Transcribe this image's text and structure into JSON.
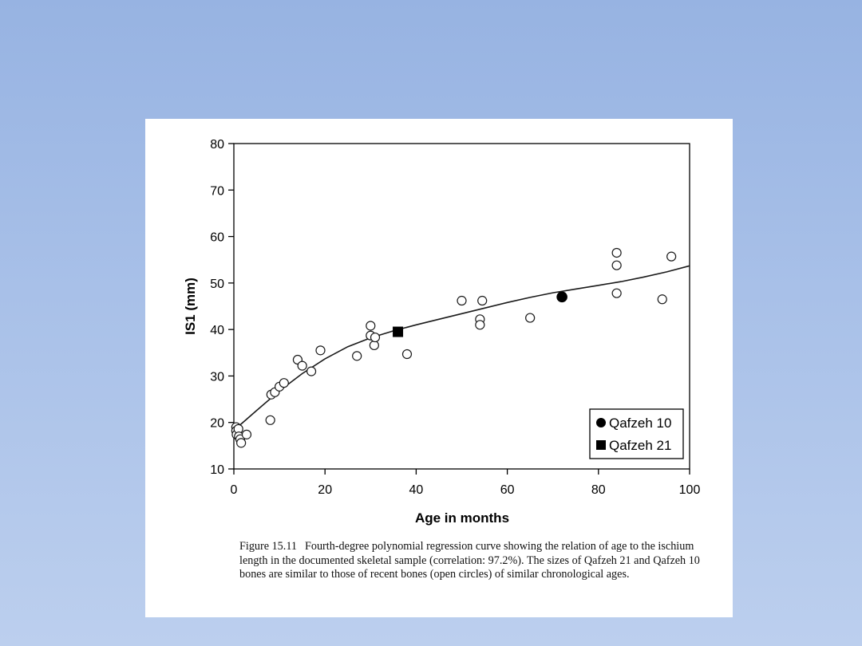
{
  "chart_data": {
    "type": "scatter",
    "xlabel": "Age in months",
    "ylabel": "IS1 (mm)",
    "xlim": [
      0,
      100
    ],
    "ylim": [
      10,
      80
    ],
    "xticks": [
      0,
      20,
      40,
      60,
      80,
      100
    ],
    "yticks": [
      10,
      20,
      30,
      40,
      50,
      60,
      70,
      80
    ],
    "grid": false,
    "legend_position": "bottom-right",
    "legend": [
      {
        "label": "Qafzeh 10",
        "marker": "filled-circle"
      },
      {
        "label": "Qafzeh 21",
        "marker": "filled-square"
      }
    ],
    "series": [
      {
        "marker": "open-circle",
        "points": [
          [
            0.5,
            19.0
          ],
          [
            0.5,
            18.2
          ],
          [
            0.6,
            17.4
          ],
          [
            1.0,
            18.6
          ],
          [
            1.1,
            17.0
          ],
          [
            1.4,
            16.4
          ],
          [
            1.6,
            15.6
          ],
          [
            2.8,
            17.4
          ],
          [
            8.0,
            20.5
          ],
          [
            8.2,
            26.0
          ],
          [
            9.0,
            26.5
          ],
          [
            10.0,
            27.7
          ],
          [
            11.0,
            28.5
          ],
          [
            14.0,
            33.5
          ],
          [
            15.0,
            32.2
          ],
          [
            17.0,
            31.0
          ],
          [
            19.0,
            35.5
          ],
          [
            27.0,
            34.3
          ],
          [
            30.0,
            40.8
          ],
          [
            30.0,
            38.7
          ],
          [
            30.8,
            36.6
          ],
          [
            31.0,
            38.3
          ],
          [
            38.0,
            34.7
          ],
          [
            50.0,
            46.2
          ],
          [
            54.0,
            42.2
          ],
          [
            54.0,
            41.0
          ],
          [
            54.5,
            46.2
          ],
          [
            65.0,
            42.5
          ],
          [
            84.0,
            56.5
          ],
          [
            84.0,
            53.8
          ],
          [
            84.0,
            47.8
          ],
          [
            94.0,
            46.5
          ],
          [
            96.0,
            55.7
          ]
        ]
      },
      {
        "name": "Qafzeh 10",
        "marker": "filled-circle",
        "points": [
          [
            72.0,
            47.0
          ]
        ]
      },
      {
        "name": "Qafzeh 21",
        "marker": "filled-square",
        "points": [
          [
            36.0,
            39.5
          ]
        ]
      }
    ],
    "regression_curve": {
      "type": "fourth-degree polynomial",
      "points": [
        [
          0,
          18.3
        ],
        [
          5,
          22.6
        ],
        [
          10,
          26.8
        ],
        [
          15,
          30.5
        ],
        [
          20,
          33.7
        ],
        [
          25,
          36.3
        ],
        [
          30,
          38.2
        ],
        [
          35,
          39.7
        ],
        [
          40,
          41.0
        ],
        [
          45,
          42.2
        ],
        [
          50,
          43.4
        ],
        [
          55,
          44.6
        ],
        [
          60,
          45.8
        ],
        [
          65,
          46.9
        ],
        [
          70,
          47.9
        ],
        [
          75,
          48.7
        ],
        [
          80,
          49.5
        ],
        [
          85,
          50.3
        ],
        [
          90,
          51.3
        ],
        [
          95,
          52.4
        ],
        [
          100,
          53.7
        ]
      ]
    }
  },
  "caption": {
    "label": "Figure 15.11",
    "text": "Fourth-degree polynomial regression curve showing the relation of age to the ischium length in the documented skeletal sample (correlation: 97.2%). The sizes of Qafzeh 21 and Qafzeh 10 bones are similar to those of recent bones (open circles) of similar chronological ages."
  }
}
